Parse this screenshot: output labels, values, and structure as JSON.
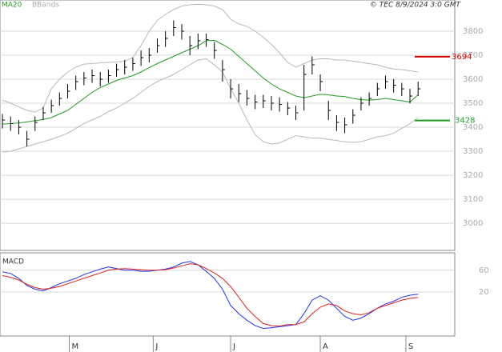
{
  "chart_data": {
    "type": "ohlc",
    "attribution": "© TEC 8/9/2024 3:0 GMT",
    "x": [
      0,
      1,
      2,
      3,
      4,
      5,
      6,
      7,
      8,
      9,
      10,
      11,
      12,
      13,
      14,
      15,
      16,
      17,
      18,
      19,
      20,
      21,
      22,
      23,
      24,
      25,
      26,
      27,
      28,
      29,
      30,
      31,
      32,
      33,
      34,
      35,
      36,
      37,
      38,
      39,
      40,
      41,
      42,
      43,
      44,
      45,
      46,
      47,
      48,
      49,
      50,
      51
    ],
    "xlim": [
      -0.3,
      55.5
    ],
    "xticks": [
      {
        "value": 8.2,
        "label": "M"
      },
      {
        "value": 18.5,
        "label": "J"
      },
      {
        "value": 28,
        "label": "J"
      },
      {
        "value": 39,
        "label": "A"
      },
      {
        "value": 49.5,
        "label": "S"
      }
    ],
    "ylim": [
      2887,
      3930
    ],
    "yticks": [
      3000,
      3100,
      3200,
      3300,
      3400,
      3500,
      3600,
      3700,
      3800
    ],
    "grid": true,
    "ohlc": {
      "color": "#000000",
      "high": [
        3455,
        3445,
        3430,
        3385,
        3445,
        3485,
        3515,
        3545,
        3580,
        3615,
        3630,
        3640,
        3630,
        3640,
        3665,
        3680,
        3690,
        3720,
        3730,
        3770,
        3800,
        3845,
        3830,
        3780,
        3790,
        3790,
        3755,
        3680,
        3600,
        3580,
        3555,
        3535,
        3535,
        3530,
        3525,
        3505,
        3490,
        3660,
        3695,
        3620,
        3510,
        3450,
        3440,
        3475,
        3525,
        3545,
        3585,
        3615,
        3600,
        3585,
        3560,
        3590
      ],
      "low": [
        3395,
        3385,
        3370,
        3320,
        3385,
        3430,
        3460,
        3490,
        3520,
        3555,
        3575,
        3585,
        3570,
        3585,
        3610,
        3620,
        3635,
        3655,
        3670,
        3710,
        3735,
        3780,
        3765,
        3700,
        3725,
        3735,
        3685,
        3590,
        3520,
        3505,
        3490,
        3475,
        3480,
        3470,
        3465,
        3450,
        3430,
        3470,
        3620,
        3550,
        3430,
        3385,
        3375,
        3415,
        3470,
        3490,
        3530,
        3560,
        3545,
        3530,
        3500,
        3530
      ],
      "close": [
        3430,
        3415,
        3400,
        3350,
        3420,
        3460,
        3490,
        3520,
        3550,
        3590,
        3605,
        3615,
        3600,
        3615,
        3640,
        3650,
        3665,
        3690,
        3700,
        3740,
        3770,
        3815,
        3800,
        3740,
        3760,
        3765,
        3720,
        3640,
        3560,
        3540,
        3520,
        3505,
        3510,
        3500,
        3495,
        3480,
        3460,
        3620,
        3660,
        3590,
        3470,
        3420,
        3410,
        3450,
        3500,
        3520,
        3560,
        3590,
        3575,
        3560,
        3530,
        3560
      ]
    },
    "series": [
      {
        "name": "MA20",
        "color": "#1f9e1f",
        "values": [
          3413,
          3415,
          3418,
          3422,
          3427,
          3432,
          3440,
          3455,
          3470,
          3495,
          3520,
          3545,
          3565,
          3580,
          3595,
          3605,
          3615,
          3630,
          3648,
          3665,
          3680,
          3695,
          3710,
          3725,
          3740,
          3760,
          3762,
          3745,
          3725,
          3695,
          3665,
          3635,
          3605,
          3580,
          3560,
          3545,
          3530,
          3523,
          3530,
          3537,
          3535,
          3530,
          3528,
          3520,
          3515,
          3513,
          3515,
          3520,
          3515,
          3510,
          3505,
          3535
        ]
      },
      {
        "name": "BBands",
        "color": "#b8b8b8",
        "upper": [
          3513,
          3500,
          3485,
          3470,
          3463,
          3480,
          3560,
          3600,
          3630,
          3650,
          3663,
          3665,
          3668,
          3670,
          3672,
          3675,
          3690,
          3740,
          3800,
          3845,
          3870,
          3890,
          3905,
          3910,
          3912,
          3910,
          3905,
          3890,
          3850,
          3830,
          3820,
          3800,
          3775,
          3745,
          3710,
          3670,
          3650,
          3665,
          3680,
          3685,
          3685,
          3680,
          3680,
          3675,
          3670,
          3665,
          3660,
          3650,
          3642,
          3640,
          3635,
          3630
        ],
        "lower": [
          3297,
          3300,
          3310,
          3320,
          3330,
          3340,
          3350,
          3362,
          3375,
          3395,
          3415,
          3430,
          3445,
          3465,
          3480,
          3500,
          3520,
          3545,
          3570,
          3590,
          3605,
          3620,
          3640,
          3660,
          3680,
          3685,
          3660,
          3630,
          3560,
          3500,
          3430,
          3370,
          3340,
          3330,
          3335,
          3350,
          3365,
          3360,
          3355,
          3355,
          3350,
          3345,
          3340,
          3337,
          3340,
          3350,
          3360,
          3365,
          3375,
          3395,
          3415,
          3440
        ]
      }
    ],
    "levels": [
      {
        "value": 3694,
        "color": "#d40000"
      },
      {
        "value": 3428,
        "color": "#1f9e1f"
      }
    ],
    "macd": {
      "title": "MACD",
      "ylim": [
        -61,
        92
      ],
      "yticks": [
        60,
        20
      ],
      "series": [
        {
          "color": "#2233ee",
          "values": [
            57,
            54,
            45,
            32,
            25,
            22,
            28,
            35,
            40,
            45,
            52,
            57,
            62,
            66,
            63,
            60,
            60,
            58,
            58,
            60,
            62,
            66,
            73,
            76,
            70,
            58,
            45,
            25,
            -5,
            -20,
            -32,
            -42,
            -47,
            -46,
            -44,
            -42,
            -40,
            -20,
            5,
            13,
            5,
            -10,
            -25,
            -32,
            -28,
            -20,
            -10,
            -2,
            3,
            10,
            14,
            16
          ]
        },
        {
          "color": "#dd2222",
          "values": [
            50,
            47,
            42,
            34,
            28,
            25,
            27,
            30,
            35,
            40,
            45,
            50,
            55,
            60,
            62,
            63,
            62,
            61,
            60,
            60,
            61,
            64,
            68,
            72,
            70,
            63,
            55,
            45,
            30,
            10,
            -10,
            -25,
            -38,
            -42,
            -43,
            -40,
            -40,
            -35,
            -20,
            -8,
            -2,
            -5,
            -15,
            -20,
            -22,
            -18,
            -10,
            -5,
            0,
            5,
            8,
            10
          ]
        }
      ]
    }
  }
}
